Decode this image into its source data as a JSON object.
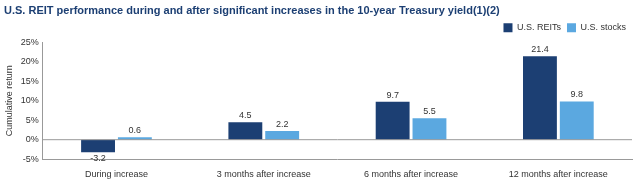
{
  "chart_data": {
    "type": "bar",
    "title": "U.S. REIT performance during and after significant increases in the 10-year Treasury yield(1)(2)",
    "y_label": "Cumulative return",
    "categories": [
      "During increase",
      "3 months after increase",
      "6 months after increase",
      "12 months after increase"
    ],
    "series": [
      {
        "name": "U.S. REITs",
        "color": "#1c3f73",
        "values": [
          -3.2,
          4.5,
          9.7,
          21.4
        ]
      },
      {
        "name": "U.S. stocks",
        "color": "#5ba8e0",
        "values": [
          0.6,
          2.2,
          5.5,
          9.8
        ]
      }
    ],
    "ylim": [
      -5,
      25
    ],
    "yticks": [
      {
        "value": -5,
        "label": "-5%"
      },
      {
        "value": 0,
        "label": "0%"
      },
      {
        "value": 5,
        "label": "5%"
      },
      {
        "value": 10,
        "label": "10%"
      },
      {
        "value": 15,
        "label": "15%"
      },
      {
        "value": 20,
        "label": "20%"
      },
      {
        "value": 25,
        "label": "25%"
      }
    ],
    "grid": false,
    "legend": "top-right",
    "data_labels": true
  }
}
